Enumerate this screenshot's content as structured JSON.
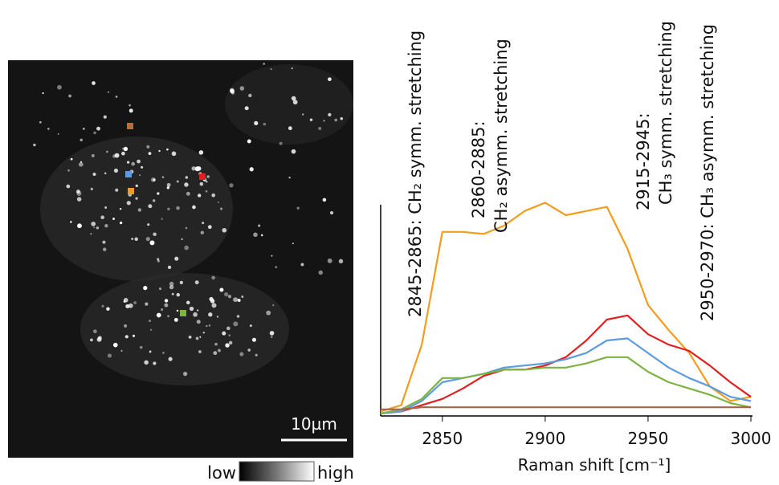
{
  "image": {
    "scale_bar_label": "10µm",
    "colorbar_low": "low",
    "colorbar_high": "high"
  },
  "chart_data": {
    "type": "line",
    "x_label": "Raman shift [cm⁻¹]",
    "annotations": [
      {
        "lines": [
          "2845-2865: CH₂ symm. stretching"
        ]
      },
      {
        "lines": [
          "2860-2885:",
          "CH₂ asymm. stretching"
        ]
      },
      {
        "lines": [
          "2915-2945:",
          "CH₃ symm. stretching"
        ]
      },
      {
        "lines": [
          "2950-2970: CH₃ asymm. stretching"
        ]
      }
    ],
    "x": [
      2820,
      2830,
      2840,
      2850,
      2860,
      2870,
      2880,
      2890,
      2900,
      2910,
      2920,
      2930,
      2940,
      2950,
      2960,
      2970,
      2980,
      2990,
      3000
    ],
    "series": [
      {
        "color": "#f39c1e",
        "values": [
          1,
          4,
          33,
          87,
          87,
          86,
          90,
          97,
          101,
          95,
          97,
          99,
          79,
          52,
          40,
          29,
          13,
          6,
          8
        ]
      },
      {
        "color": "#e02020",
        "values": [
          0,
          1,
          4,
          7,
          12,
          18,
          21,
          21,
          23,
          27,
          35,
          45,
          47,
          38,
          33,
          30,
          23,
          15,
          8
        ]
      },
      {
        "color": "#5b9bdf",
        "values": [
          0,
          1,
          6,
          15,
          17,
          19,
          22,
          23,
          24,
          26,
          29,
          35,
          36,
          29,
          22,
          17,
          13,
          8,
          6
        ]
      },
      {
        "color": "#7cb342",
        "values": [
          0,
          2,
          7,
          17,
          17,
          19,
          21,
          21,
          22,
          22,
          24,
          27,
          27,
          20,
          15,
          12,
          9,
          5,
          3
        ]
      },
      {
        "color": "#a0684a",
        "values": [
          2,
          2,
          3,
          3,
          3,
          3,
          3,
          3,
          3,
          3,
          3,
          3,
          3,
          3,
          3,
          3,
          3,
          3,
          3
        ]
      }
    ],
    "xlim": [
      2820,
      3000
    ],
    "xticks": [
      2850,
      2900,
      2950,
      3000
    ],
    "ylim": [
      0,
      105
    ]
  }
}
